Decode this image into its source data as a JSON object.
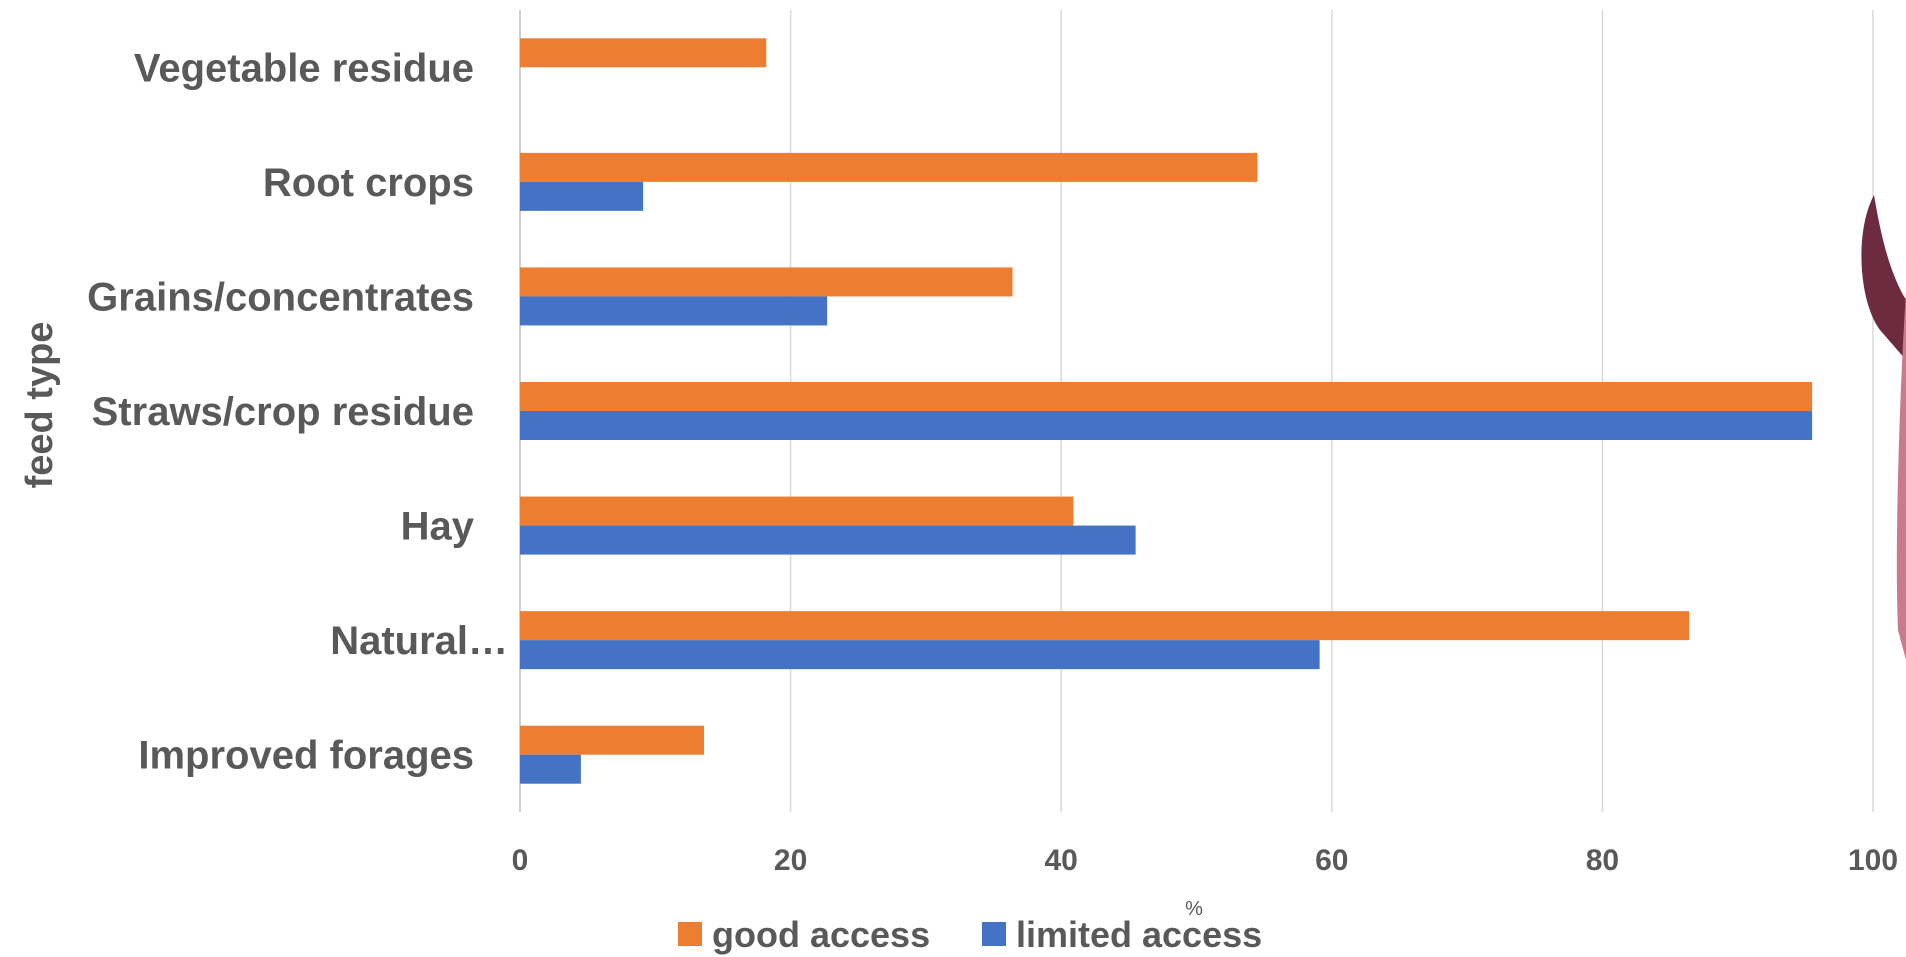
{
  "chart_data": {
    "type": "bar",
    "orientation": "horizontal",
    "categories": [
      "Vegetable residue",
      "Root crops",
      "Grains/concentrates",
      "Straws/crop residue",
      "Hay",
      "Natural…",
      "Improved forages"
    ],
    "series": [
      {
        "name": "good  access",
        "color": "#ED7D31",
        "values": [
          18.2,
          54.5,
          36.4,
          95.5,
          40.9,
          86.4,
          13.6
        ]
      },
      {
        "name": "limited access",
        "color": "#4472C4",
        "values": [
          null,
          9.1,
          22.7,
          95.5,
          45.5,
          59.1,
          4.5
        ]
      }
    ],
    "xlabel": "%",
    "ylabel": "feed type",
    "xlim": [
      0,
      100
    ],
    "xticks": [
      0,
      20,
      40,
      60,
      80,
      100
    ],
    "grid": "vertical",
    "legend": "bottom"
  }
}
